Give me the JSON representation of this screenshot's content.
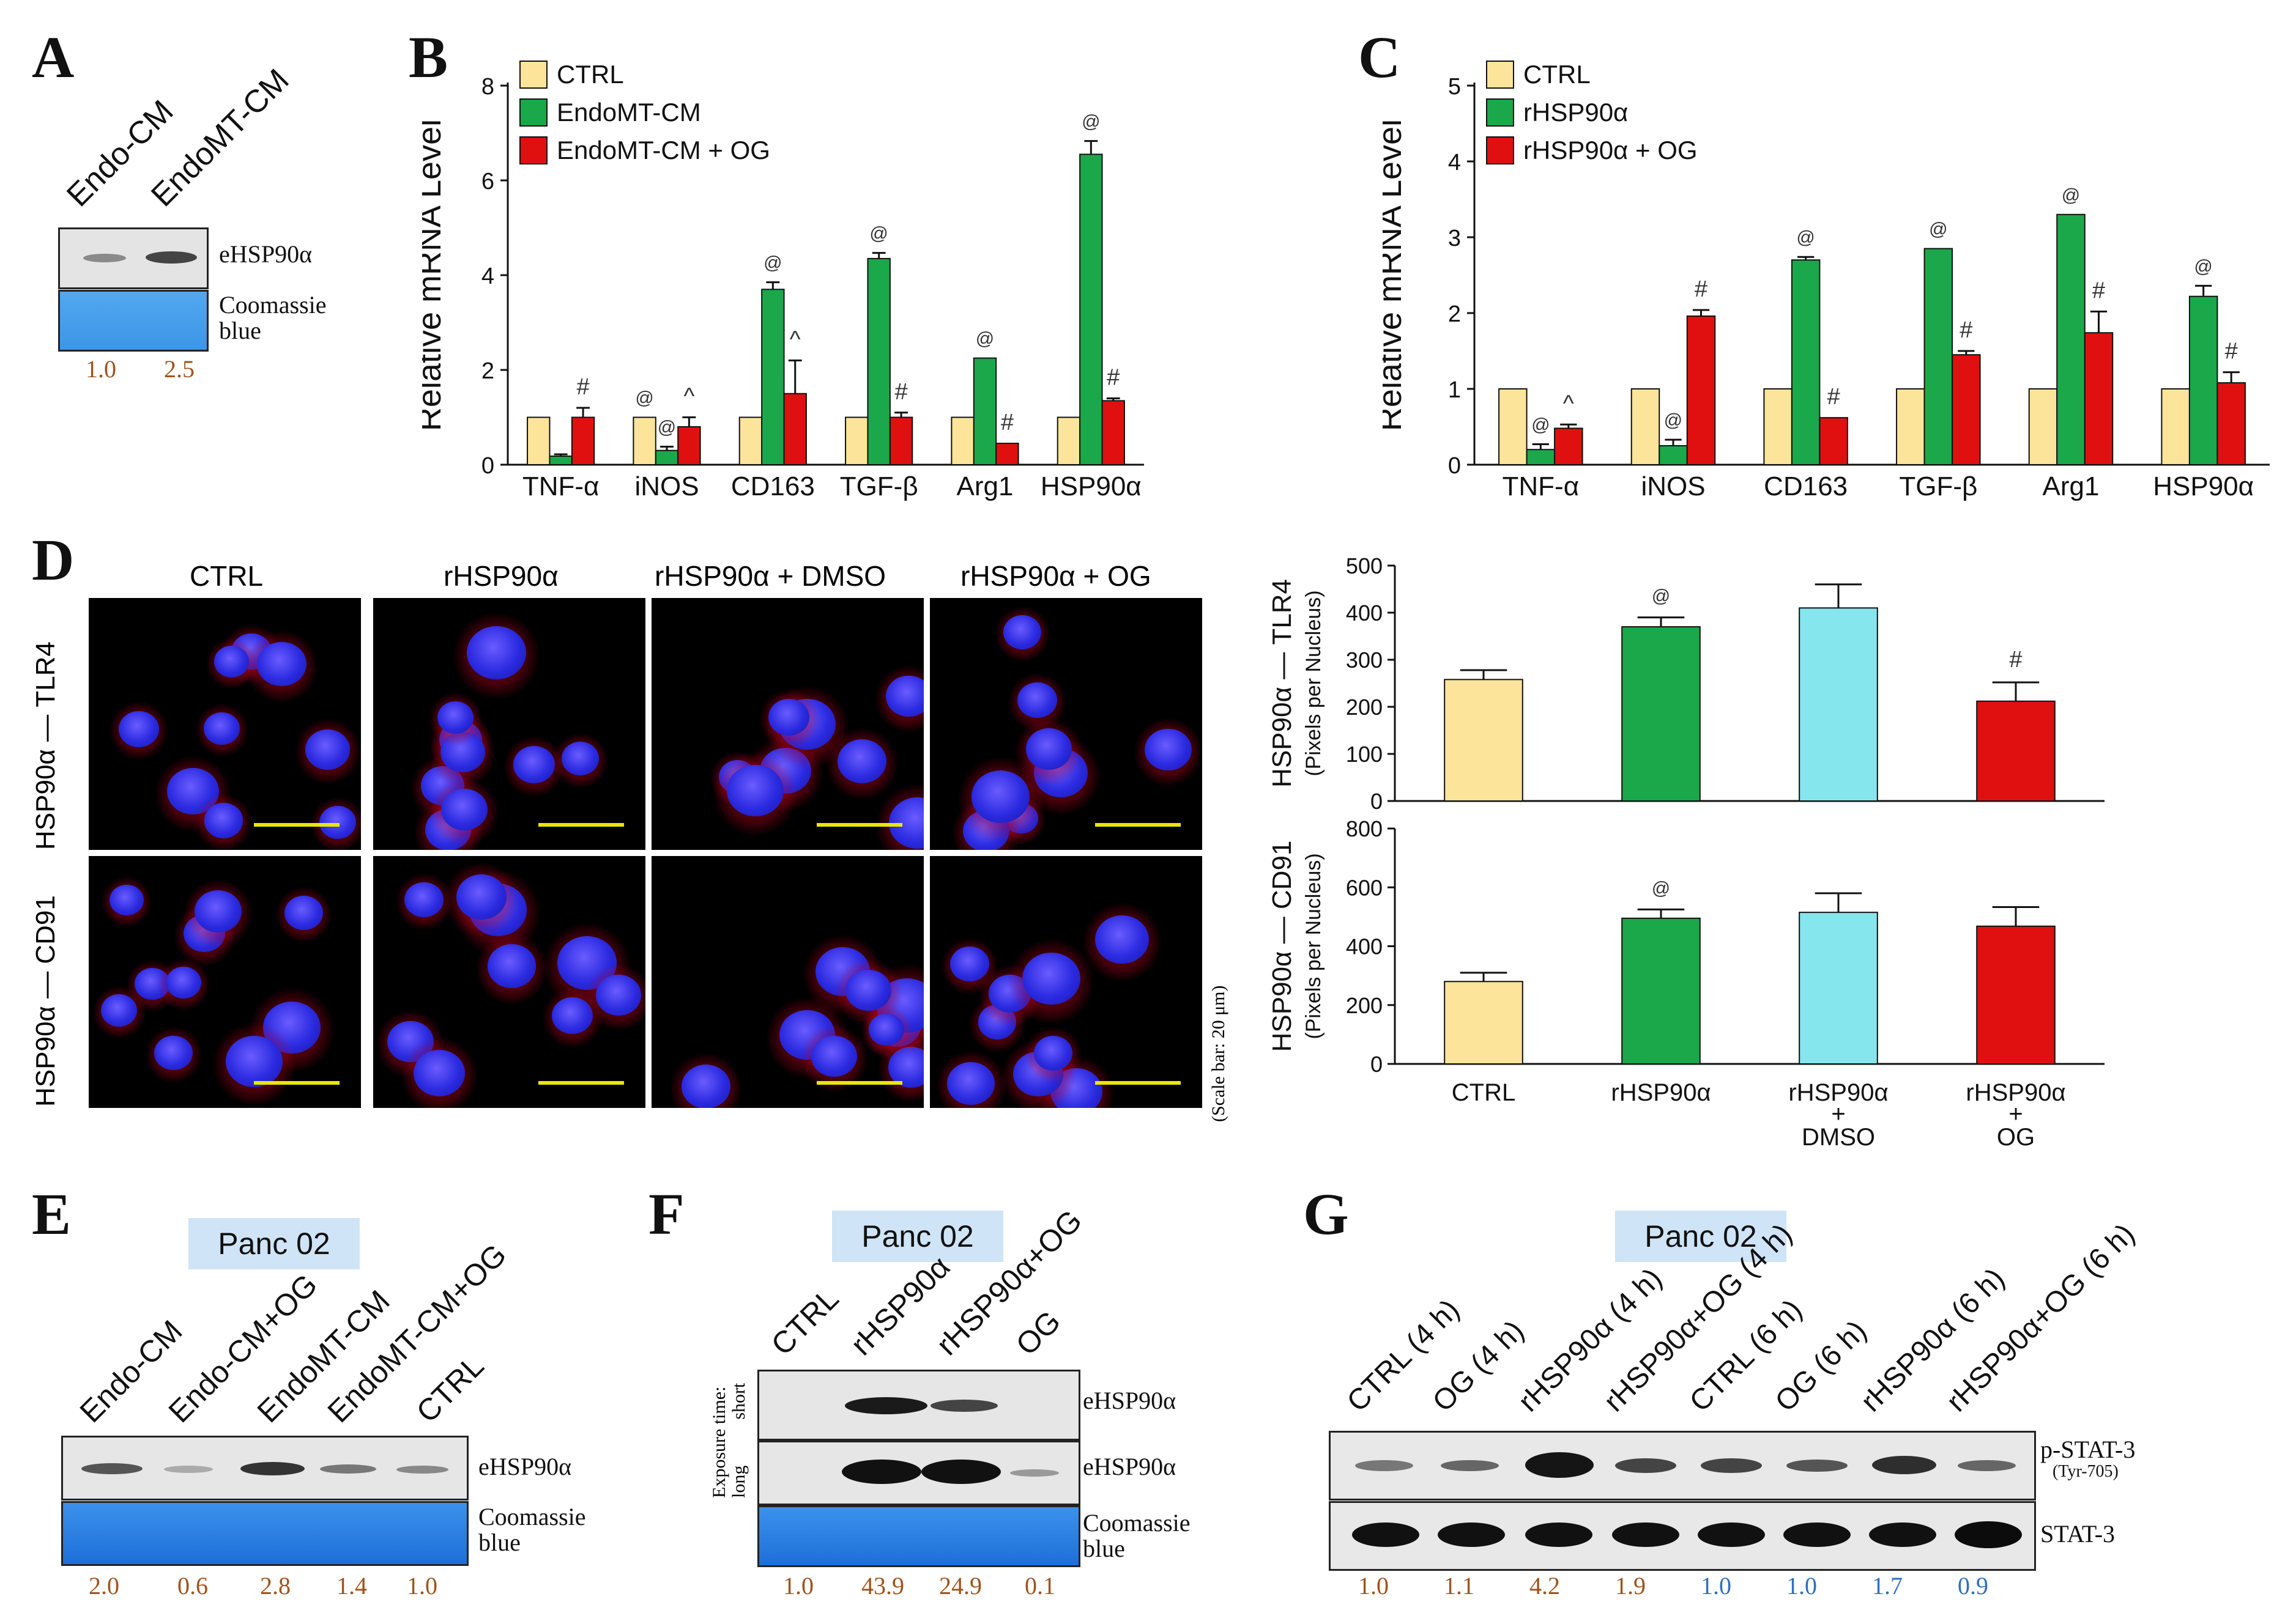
{
  "panels": {
    "A": "A",
    "B": "B",
    "C": "C",
    "D": "D",
    "E": "E",
    "F": "F",
    "G": "G"
  },
  "panel_a": {
    "lanes": [
      "Endo-CM",
      "EndoMT-CM"
    ],
    "band_labels": [
      "eHSP90α",
      "Coomassie blue"
    ],
    "quant": [
      "1.0",
      "2.5"
    ]
  },
  "chart_data": [
    {
      "id": "B",
      "type": "bar",
      "ylabel": "Relative mRNA Level",
      "ylim": [
        0,
        8
      ],
      "yticks": [
        "0",
        "2",
        "4",
        "6",
        "8"
      ],
      "categories": [
        "TNF-α",
        "iNOS",
        "CD163",
        "TGF-β",
        "Arg1",
        "HSP90α"
      ],
      "series": [
        {
          "name": "CTRL",
          "color": "#fce49a",
          "values": [
            1.0,
            1.0,
            1.0,
            1.0,
            1.0,
            1.0
          ],
          "errors": [
            0,
            0,
            0,
            0,
            0,
            0
          ]
        },
        {
          "name": "EndoMT-CM",
          "color": "#1aa84a",
          "values": [
            0.18,
            0.3,
            3.7,
            4.35,
            2.25,
            6.55
          ],
          "errors": [
            0.04,
            0.08,
            0.15,
            0.12,
            0,
            0.28
          ]
        },
        {
          "name": "EndoMT-CM + OG",
          "color": "#e01010",
          "values": [
            1.0,
            0.8,
            1.5,
            1.0,
            0.45,
            1.35
          ],
          "errors": [
            0.2,
            0.2,
            0.7,
            0.1,
            0,
            0.05
          ]
        }
      ],
      "annotations": [
        {
          "category": 1,
          "series": 0,
          "text": "@"
        },
        {
          "category": 1,
          "series": 1,
          "text": "@"
        },
        {
          "category": 2,
          "series": 1,
          "text": "@"
        },
        {
          "category": 3,
          "series": 1,
          "text": "@"
        },
        {
          "category": 4,
          "series": 1,
          "text": "@"
        },
        {
          "category": 5,
          "series": 1,
          "text": "@"
        },
        {
          "category": 0,
          "series": 2,
          "text": "#"
        },
        {
          "category": 1,
          "series": 2,
          "text": "^"
        },
        {
          "category": 2,
          "series": 2,
          "text": "^"
        },
        {
          "category": 3,
          "series": 2,
          "text": "#"
        },
        {
          "category": 4,
          "series": 2,
          "text": "#"
        },
        {
          "category": 5,
          "series": 2,
          "text": "#"
        }
      ]
    },
    {
      "id": "C",
      "type": "bar",
      "ylabel": "Relative mRNA Level",
      "ylim": [
        0,
        5
      ],
      "yticks": [
        "0",
        "1",
        "2",
        "3",
        "4",
        "5"
      ],
      "categories": [
        "TNF-α",
        "iNOS",
        "CD163",
        "TGF-β",
        "Arg1",
        "HSP90α"
      ],
      "series": [
        {
          "name": "CTRL",
          "color": "#fce49a",
          "values": [
            1.0,
            1.0,
            1.0,
            1.0,
            1.0,
            1.0
          ],
          "errors": [
            0,
            0,
            0,
            0,
            0,
            0
          ]
        },
        {
          "name": "rHSP90α",
          "color": "#1aa84a",
          "values": [
            0.2,
            0.25,
            2.7,
            2.85,
            3.3,
            2.22
          ],
          "errors": [
            0.07,
            0.08,
            0.04,
            0,
            0,
            0.14
          ]
        },
        {
          "name": "rHSP90α + OG",
          "color": "#e01010",
          "values": [
            0.48,
            1.96,
            0.62,
            1.45,
            1.74,
            1.08
          ],
          "errors": [
            0.05,
            0.08,
            0,
            0.05,
            0.28,
            0.14
          ]
        }
      ],
      "annotations": [
        {
          "category": 0,
          "series": 1,
          "text": "@"
        },
        {
          "category": 1,
          "series": 1,
          "text": "@"
        },
        {
          "category": 2,
          "series": 1,
          "text": "@"
        },
        {
          "category": 3,
          "series": 1,
          "text": "@"
        },
        {
          "category": 4,
          "series": 1,
          "text": "@"
        },
        {
          "category": 5,
          "series": 1,
          "text": "@"
        },
        {
          "category": 0,
          "series": 2,
          "text": "^"
        },
        {
          "category": 1,
          "series": 2,
          "text": "#"
        },
        {
          "category": 2,
          "series": 2,
          "text": "#"
        },
        {
          "category": 3,
          "series": 2,
          "text": "#"
        },
        {
          "category": 4,
          "series": 2,
          "text": "#"
        },
        {
          "category": 5,
          "series": 2,
          "text": "#"
        }
      ]
    },
    {
      "id": "D-top",
      "type": "bar",
      "ylabel": "HSP90α — TLR4",
      "ylabel2": "(Pixels per Nucleus)",
      "ylim": [
        0,
        500
      ],
      "yticks": [
        "0",
        "100",
        "200",
        "300",
        "400",
        "500"
      ],
      "categories": [
        "CTRL",
        "rHSP90α",
        "rHSP90α + DMSO",
        "rHSP90α + OG"
      ],
      "values": [
        258,
        370,
        410,
        212
      ],
      "errors": [
        20,
        20,
        50,
        40
      ],
      "colors": [
        "#fce49a",
        "#1aa84a",
        "#86e6ee",
        "#e01010"
      ],
      "annotations": [
        {
          "index": 1,
          "text": "@"
        },
        {
          "index": 3,
          "text": "#"
        }
      ]
    },
    {
      "id": "D-bottom",
      "type": "bar",
      "ylabel": "HSP90α — CD91",
      "ylabel2": "(Pixels per Nucleus)",
      "ylim": [
        0,
        800
      ],
      "yticks": [
        "0",
        "200",
        "400",
        "600",
        "800"
      ],
      "categories": [
        "CTRL",
        "rHSP90α",
        "rHSP90α\n+\nDMSO",
        "rHSP90α\n+\nOG"
      ],
      "values": [
        280,
        495,
        515,
        468
      ],
      "errors": [
        30,
        30,
        65,
        65
      ],
      "colors": [
        "#fce49a",
        "#1aa84a",
        "#86e6ee",
        "#e01010"
      ],
      "annotations": [
        {
          "index": 1,
          "text": "@"
        }
      ]
    }
  ],
  "panel_d": {
    "columns": [
      "CTRL",
      "rHSP90α",
      "rHSP90α + DMSO",
      "rHSP90α + OG"
    ],
    "rows": [
      "HSP90α — TLR4",
      "HSP90α — CD91"
    ],
    "scale_note": "(Scale bar: 20 μm)",
    "xcat": [
      "CTRL",
      "rHSP90α",
      "rHSP90α",
      "+",
      "DMSO",
      "rHSP90α",
      "+",
      "OG"
    ]
  },
  "panel_e": {
    "cell_line": "Panc 02",
    "lanes": [
      "Endo-CM",
      "Endo-CM+OG",
      "EndoMT-CM",
      "EndoMT-CM+OG",
      "CTRL"
    ],
    "band_labels": [
      "eHSP90α",
      "Coomassie blue"
    ],
    "quant": [
      "2.0",
      "0.6",
      "2.8",
      "1.4",
      "1.0"
    ]
  },
  "panel_f": {
    "cell_line": "Panc 02",
    "lanes": [
      "CTRL",
      "rHSP90α",
      "rHSP90α+OG",
      "OG"
    ],
    "exposure_label": "Exposure time:",
    "exposure_short": "short",
    "exposure_long": "long",
    "band_labels": [
      "eHSP90α",
      "eHSP90α",
      "Coomassie blue"
    ],
    "quant": [
      "1.0",
      "43.9",
      "24.9",
      "0.1"
    ]
  },
  "panel_g": {
    "cell_line": "Panc 02",
    "lanes": [
      "CTRL (4 h)",
      "OG (4 h)",
      "rHSP90α (4 h)",
      "rHSP90α+OG (4 h)",
      "CTRL (6 h)",
      "OG (6 h)",
      "rHSP90α (6 h)",
      "rHSP90α+OG (6 h)"
    ],
    "band_labels": [
      "p-STAT-3",
      "(Tyr-705)",
      "STAT-3"
    ],
    "quant": [
      "1.0",
      "1.1",
      "4.2",
      "1.9",
      "1.0",
      "1.0",
      "1.7",
      "0.9"
    ],
    "quant_colors": [
      "#a0521b",
      "#a0521b",
      "#a0521b",
      "#a0521b",
      "#2e6fbf",
      "#2e6fbf",
      "#2e6fbf",
      "#2e6fbf"
    ]
  }
}
